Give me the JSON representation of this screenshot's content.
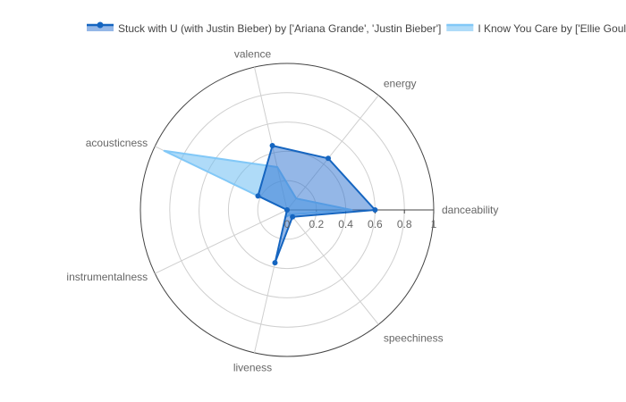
{
  "chart_data": {
    "type": "radar",
    "axes": [
      "danceability",
      "energy",
      "valence",
      "acousticness",
      "instrumentalness",
      "liveness",
      "speechiness"
    ],
    "radial_ticks": [
      "0",
      "0.2",
      "0.4",
      "0.6",
      "0.8",
      "1"
    ],
    "radial_range": [
      0,
      1
    ],
    "grid": true,
    "legend_position": "top",
    "series": [
      {
        "name": "Stuck with U (with Justin Bieber) by ['Ariana Grande', 'Justin Bieber']",
        "values": [
          0.6,
          0.45,
          0.45,
          0.22,
          0.0,
          0.37,
          0.06
        ],
        "line_color": "#1565c0",
        "fill_color": "#2a6fd0",
        "fill_opacity": 0.5,
        "markers": true
      },
      {
        "name": "I Know You Care by ['Ellie Goulding']",
        "values": [
          0.44,
          0.1,
          0.3,
          0.93,
          0.0,
          0.05,
          0.04
        ],
        "line_color": "#82c8f7",
        "fill_color": "#6dbdf3",
        "fill_opacity": 0.55,
        "markers": false
      }
    ]
  }
}
